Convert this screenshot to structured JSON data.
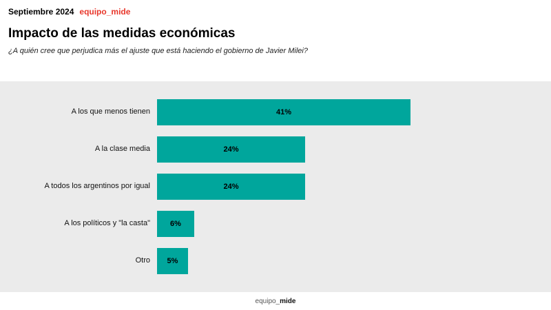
{
  "header": {
    "date": "Septiembre 2024",
    "brand": "equipo_mide",
    "brand_color": "#e8372b",
    "title": "Impacto de las medidas económicas",
    "subtitle": "¿A quién cree que perjudica más el ajuste que está haciendo el gobierno de Javier Milei?"
  },
  "chart_data": {
    "type": "bar",
    "orientation": "horizontal",
    "categories": [
      "A los que menos tienen",
      "A la clase media",
      "A todos los argentinos por igual",
      "A los políticos y \"la casta\"",
      "Otro"
    ],
    "values": [
      41,
      24,
      24,
      6,
      5
    ],
    "value_labels": [
      "41%",
      "24%",
      "24%",
      "6%",
      "5%"
    ],
    "title": "Impacto de las medidas económicas",
    "xlabel": "",
    "ylabel": "",
    "xlim": [
      0,
      45
    ],
    "grid": false,
    "legend": "none",
    "bar_color": "#00a69c",
    "plot_background": "#ebebeb"
  },
  "footer": {
    "brand_prefix": "equipo_",
    "brand_suffix": "mide"
  }
}
